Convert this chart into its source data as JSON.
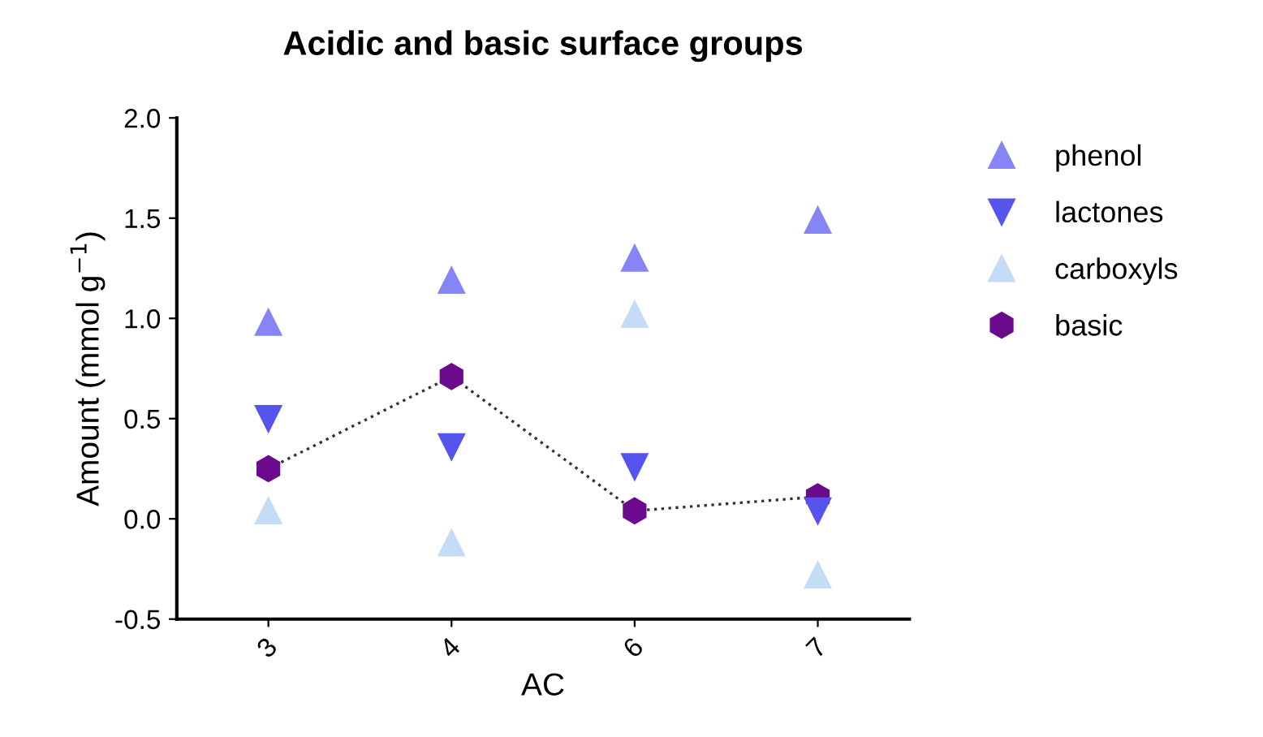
{
  "chart_data": {
    "type": "scatter",
    "title": "Acidic and basic surface groups",
    "xlabel": "AC",
    "ylabel": "Amount (mmol g$^{−1}$)",
    "categories": [
      "3",
      "4",
      "6",
      "7"
    ],
    "series": [
      {
        "name": "phenol",
        "color": "#8585f5",
        "marker": "triangle",
        "values": [
          0.98,
          1.19,
          1.3,
          1.49
        ]
      },
      {
        "name": "lactones",
        "color": "#5555ee",
        "marker": "triangle_down",
        "values": [
          0.5,
          0.36,
          0.26,
          0.04
        ]
      },
      {
        "name": "carboxyls",
        "color": "#c5dcf7",
        "marker": "triangle",
        "values": [
          0.04,
          -0.12,
          1.02,
          -0.28
        ]
      },
      {
        "name": "basic",
        "type": "line",
        "line_style": "dotted",
        "color": "#6b0a8c",
        "marker": "circle",
        "values": [
          0.25,
          0.71,
          0.04,
          0.11
        ]
      }
    ],
    "ylim": [
      -0.5,
      2.0
    ],
    "yticks": [
      -0.5,
      {
        "value": 0,
        "label": "0.0"
      },
      0.5,
      {
        "value": 1,
        "label": "1.0"
      },
      1.5,
      {
        "value": 2,
        "label": "2.0"
      }
    ],
    "grid": false,
    "legend": "right"
  }
}
